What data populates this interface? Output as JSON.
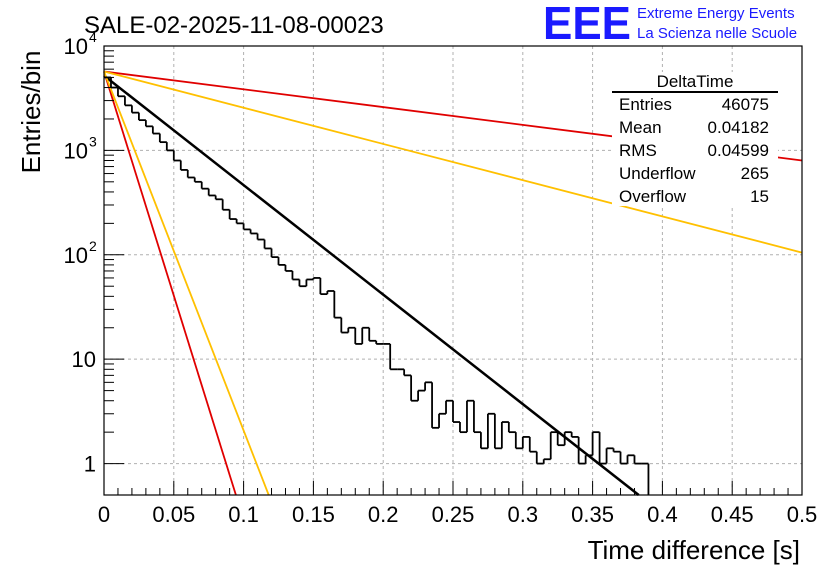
{
  "title": "SALE-02-2025-11-08-00023",
  "logo": {
    "mark": "EEE",
    "line1": "Extreme Energy Events",
    "line2": "La Scienza nelle Scuole",
    "color": "#1a1aff"
  },
  "stats_box": {
    "name": "DeltaTime",
    "rows": [
      {
        "label": "Entries",
        "value": "46075"
      },
      {
        "label": "Mean",
        "value": "0.04182"
      },
      {
        "label": "RMS",
        "value": "0.04599"
      },
      {
        "label": "Underflow",
        "value": "265"
      },
      {
        "label": "Overflow",
        "value": "15"
      }
    ]
  },
  "chart_data": {
    "type": "line",
    "title": "SALE-02-2025-11-08-00023",
    "xlabel": "Time difference [s]",
    "ylabel": "Entries/bin",
    "xlim": [
      0,
      0.5
    ],
    "ylim": [
      0.5,
      10000
    ],
    "yscale": "log",
    "grid": true,
    "x_ticks": [
      "0",
      "0.05",
      "0.1",
      "0.15",
      "0.2",
      "0.25",
      "0.3",
      "0.35",
      "0.4",
      "0.45",
      "0.5"
    ],
    "x_tick_values": [
      0,
      0.05,
      0.1,
      0.15,
      0.2,
      0.25,
      0.3,
      0.35,
      0.4,
      0.45,
      0.5
    ],
    "y_ticks": [
      {
        "value": 1,
        "base": "1",
        "exp": ""
      },
      {
        "value": 10,
        "base": "10",
        "exp": ""
      },
      {
        "value": 100,
        "base": "10",
        "exp": "2"
      },
      {
        "value": 1000,
        "base": "10",
        "exp": "3"
      },
      {
        "value": 10000,
        "base": "10",
        "exp": "4"
      }
    ],
    "histogram": {
      "name": "DeltaTime",
      "bin_width": 0.005,
      "color": "#000000",
      "values": [
        5000,
        4000,
        3300,
        2700,
        2300,
        1950,
        1700,
        1450,
        1200,
        1000,
        800,
        650,
        550,
        500,
        430,
        370,
        340,
        270,
        220,
        200,
        175,
        160,
        140,
        115,
        95,
        80,
        70,
        58,
        50,
        58,
        60,
        42,
        45,
        25,
        18,
        20,
        14,
        20,
        15,
        14,
        14,
        8,
        8,
        7,
        4,
        5,
        6,
        2.2,
        3,
        4,
        2.5,
        2,
        4,
        2,
        1.4,
        3,
        1.4,
        2.5,
        2,
        1.4,
        1.8,
        1.3,
        1,
        1.1,
        2,
        1.5,
        2,
        1.8,
        1,
        1.2,
        2,
        1,
        1.4,
        1.3,
        1,
        1.2,
        1,
        1,
        0,
        0,
        0,
        0,
        0,
        0,
        0,
        0,
        0,
        0,
        0,
        0,
        0,
        0,
        0,
        0,
        0,
        0,
        0,
        0,
        0,
        0
      ]
    },
    "series": [
      {
        "name": "fit",
        "color": "#000000",
        "width": 2.5,
        "x": [
          0,
          0.383
        ],
        "y": [
          5200,
          0.5
        ]
      },
      {
        "name": "upper-red",
        "color": "#e00000",
        "width": 1.8,
        "x": [
          0,
          0.5
        ],
        "y": [
          5700,
          800
        ]
      },
      {
        "name": "upper-orange",
        "color": "#ffc000",
        "width": 1.8,
        "x": [
          0,
          0.5
        ],
        "y": [
          5700,
          105
        ]
      },
      {
        "name": "steep-red",
        "color": "#e00000",
        "width": 1.8,
        "x": [
          0,
          0.0945
        ],
        "y": [
          5700,
          0.5
        ]
      },
      {
        "name": "steep-orange",
        "color": "#ffc000",
        "width": 1.8,
        "x": [
          0,
          0.118
        ],
        "y": [
          5700,
          0.5
        ]
      }
    ]
  }
}
